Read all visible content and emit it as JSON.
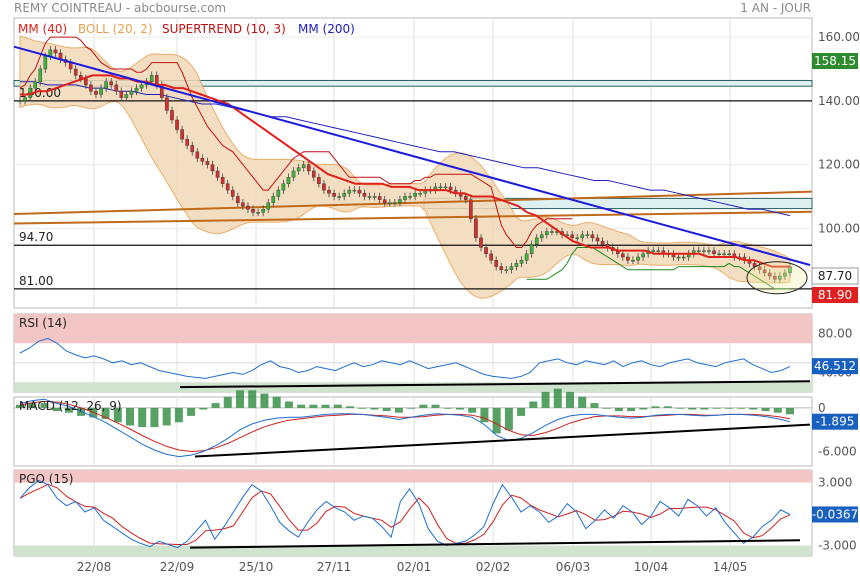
{
  "header": {
    "title": "REMY COINTREAU - abcbourse.com",
    "period": "1 AN - JOUR"
  },
  "colors": {
    "mm40": "#e0201a",
    "boll": "#e8a050",
    "boll_fill": "#f3d9b8",
    "supertrend_red": "#c01010",
    "supertrend_green": "#1a8a1a",
    "mm200": "#2020c0",
    "trendline": "#1a1ae0",
    "channel": "#c06a1a",
    "zone_red": "#f3c6c6",
    "zone_green": "#cfe3cf",
    "price_box": "#2e8a2e",
    "down_box": "#e02020",
    "indicator_box": "#1860c0"
  },
  "chart_data": [
    {
      "type": "line",
      "panel": "price",
      "title": "REMY COINTREAU",
      "legend": [
        "MM (40)",
        "BOLL (20, 2)",
        "SUPERTREND (10, 3)",
        "MM (200)"
      ],
      "x_ticks": [
        "22/08",
        "22/09",
        "25/10",
        "27/11",
        "02/01",
        "02/02",
        "06/03",
        "10/04",
        "14/05"
      ],
      "y_ticks": [
        "160.00",
        "140.00",
        "120.00",
        "100.00"
      ],
      "ylim": [
        75,
        166
      ],
      "levels": [
        "140.00",
        "94.70",
        "81.00"
      ],
      "price_labels": {
        "top": "158.15",
        "current": "87.70",
        "low": "81.90"
      },
      "close": [
        140,
        141,
        144,
        146,
        150,
        154,
        156,
        155,
        153,
        152,
        150,
        148,
        147,
        145,
        143,
        142,
        144,
        146,
        145,
        143,
        141,
        142,
        143,
        144,
        145,
        146,
        148,
        145,
        141,
        137,
        134,
        131,
        128,
        126,
        124,
        122,
        121,
        120,
        118,
        116,
        114,
        112,
        110,
        108,
        107,
        106,
        105,
        105,
        106,
        108,
        110,
        112,
        114,
        116,
        118,
        119,
        120,
        118,
        116,
        114,
        112,
        111,
        110,
        110,
        111,
        112,
        112,
        111,
        110,
        110,
        110,
        109,
        108,
        108,
        108,
        109,
        110,
        110,
        111,
        111,
        112,
        112,
        113,
        113,
        113,
        112,
        111,
        110,
        109,
        103,
        97,
        94,
        92,
        90,
        88,
        87,
        87,
        88,
        89,
        90,
        92,
        95,
        97,
        98,
        99,
        99,
        99,
        98,
        98,
        97,
        97,
        98,
        98,
        97,
        96,
        95,
        94,
        93,
        92,
        91,
        90,
        90,
        91,
        92,
        93,
        93,
        93,
        92,
        92,
        91,
        91,
        91,
        92,
        93,
        93,
        93,
        93,
        92,
        92,
        92,
        92,
        91,
        91,
        90,
        89,
        88,
        87,
        86,
        85,
        84,
        85,
        86,
        88
      ],
      "mm40": [
        142,
        142,
        143,
        143,
        144,
        145,
        146,
        147,
        148,
        148,
        148,
        147,
        147,
        146,
        146,
        145,
        145,
        144,
        144,
        143,
        142,
        141,
        140,
        139,
        137,
        135,
        133,
        131,
        129,
        127,
        125,
        123,
        121,
        119,
        117,
        116,
        115,
        114,
        114,
        114,
        114,
        113,
        113,
        113,
        112,
        112,
        112,
        112,
        111,
        111,
        110,
        110,
        110,
        109,
        108,
        107,
        105,
        104,
        102,
        100,
        98,
        96,
        95,
        94,
        94,
        94,
        93,
        93,
        93,
        93,
        92,
        92,
        92,
        92,
        92,
        92,
        91,
        91,
        91,
        91,
        90,
        90,
        89,
        88,
        88,
        88
      ],
      "mm200": [
        146,
        146,
        145,
        145,
        145,
        144,
        144,
        143,
        143,
        142,
        142,
        141,
        140,
        139,
        139,
        138,
        137,
        136,
        135,
        135,
        134,
        133,
        132,
        131,
        130,
        129,
        128,
        127,
        126,
        125,
        124,
        124,
        123,
        122,
        121,
        120,
        119,
        119,
        118,
        117,
        116,
        115,
        115,
        114,
        113,
        112,
        112,
        111,
        110,
        109,
        108,
        107,
        106,
        106,
        105,
        104
      ]
    },
    {
      "type": "line",
      "panel": "rsi",
      "title": "RSI (14)",
      "y_ticks": [
        "80.00",
        "40.00"
      ],
      "ylim": [
        20,
        100
      ],
      "current": "46.512",
      "values": [
        60,
        65,
        72,
        75,
        70,
        62,
        58,
        55,
        57,
        54,
        50,
        52,
        48,
        50,
        46,
        42,
        40,
        38,
        36,
        35,
        34,
        36,
        38,
        40,
        38,
        42,
        48,
        52,
        46,
        44,
        40,
        42,
        46,
        44,
        42,
        46,
        50,
        46,
        48,
        52,
        50,
        48,
        52,
        48,
        44,
        46,
        48,
        50,
        46,
        42,
        38,
        36,
        35,
        34,
        36,
        40,
        50,
        52,
        54,
        50,
        48,
        52,
        50,
        48,
        52,
        46,
        50,
        52,
        48,
        46,
        50,
        52,
        54,
        50,
        48,
        46,
        50,
        52,
        54,
        48,
        44,
        40,
        42,
        46
      ]
    },
    {
      "type": "line",
      "panel": "macd",
      "title": "MACD (12, 26, 9)",
      "y_ticks": [
        "0",
        "-6.000"
      ],
      "ylim": [
        -8,
        1.5
      ],
      "current": "-1.895",
      "values": [
        0.6,
        1.0,
        1.2,
        0.6,
        0.2,
        -0.5,
        -1.2,
        -2.0,
        -3.0,
        -4.0,
        -5.0,
        -5.8,
        -6.4,
        -6.7,
        -6.5,
        -6.0,
        -5.2,
        -4.2,
        -3.0,
        -2.2,
        -1.7,
        -1.4,
        -1.3,
        -1.3,
        -1.1,
        -0.9,
        -0.8,
        -0.8,
        -0.9,
        -1.1,
        -1.3,
        -1.6,
        -1.3,
        -1.0,
        -0.8,
        -0.9,
        -1.0,
        -1.3,
        -2.3,
        -3.8,
        -4.5,
        -4.2,
        -3.4,
        -2.4,
        -1.6,
        -1.1,
        -0.9,
        -0.9,
        -1.1,
        -1.3,
        -1.4,
        -1.3,
        -1.0,
        -0.9,
        -0.9,
        -1.0,
        -1.1,
        -1.0,
        -0.9,
        -0.9,
        -1.0,
        -1.2,
        -1.5,
        -1.9
      ],
      "signal": [
        0.4,
        0.7,
        0.9,
        0.8,
        0.5,
        0.0,
        -0.6,
        -1.3,
        -2.1,
        -2.9,
        -3.8,
        -4.6,
        -5.3,
        -5.8,
        -6.0,
        -5.9,
        -5.5,
        -4.9,
        -4.1,
        -3.3,
        -2.6,
        -2.1,
        -1.7,
        -1.5,
        -1.3,
        -1.1,
        -1.0,
        -0.9,
        -0.9,
        -1.0,
        -1.1,
        -1.3,
        -1.3,
        -1.2,
        -1.0,
        -0.9,
        -0.9,
        -1.0,
        -1.4,
        -2.2,
        -3.1,
        -3.7,
        -3.8,
        -3.4,
        -2.8,
        -2.1,
        -1.6,
        -1.2,
        -1.1,
        -1.1,
        -1.2,
        -1.2,
        -1.1,
        -1.0,
        -0.9,
        -0.9,
        -1.0,
        -1.0,
        -0.9,
        -0.9,
        -0.9,
        -1.0,
        -1.2,
        -1.5
      ]
    },
    {
      "type": "line",
      "panel": "pgo",
      "title": "PGO (15)",
      "y_ticks": [
        "3.000",
        "-3.000"
      ],
      "ylim": [
        -4,
        4.2
      ],
      "current": "-0.0367",
      "values": [
        1.5,
        2.5,
        3.2,
        2.8,
        1.5,
        0.8,
        1.2,
        0.2,
        0.6,
        -0.6,
        -1.2,
        -1.8,
        -2.4,
        -2.8,
        -3.1,
        -2.6,
        -2.9,
        -3.2,
        -2.6,
        -1.6,
        -0.6,
        -2.4,
        -1.2,
        0.2,
        1.6,
        2.8,
        2.2,
        0.8,
        -0.8,
        -1.6,
        -2.2,
        -0.8,
        0.4,
        1.2,
        0.6,
        0.2,
        -0.6,
        -0.2,
        -0.4,
        -1.2,
        -2.2,
        1.2,
        2.4,
        1.0,
        -1.4,
        -2.6,
        -3.0,
        -2.8,
        -2.6,
        -2.0,
        -1.2,
        1.0,
        2.8,
        1.6,
        0.2,
        0.8,
        0.2,
        -0.8,
        -0.2,
        1.0,
        0.2,
        -1.4,
        -0.6,
        0.4,
        -0.4,
        0.8,
        0.2,
        -1.0,
        -0.2,
        1.2,
        0.6,
        -0.2,
        1.4,
        0.8,
        -0.2,
        0.6,
        -0.8,
        -1.8,
        -2.8,
        -2.2,
        -1.2,
        -0.6,
        0.4,
        -0.04
      ]
    }
  ]
}
